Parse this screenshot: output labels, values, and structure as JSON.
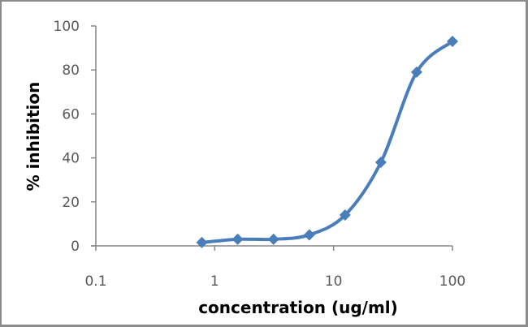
{
  "chart_data": {
    "type": "line",
    "title": "",
    "xlabel": "concentration (ug/ml)",
    "ylabel": "% inhibition",
    "x_scale": "log",
    "xlim": [
      0.1,
      100
    ],
    "ylim": [
      0,
      100
    ],
    "x_ticks": [
      "0.1",
      "1",
      "10",
      "100"
    ],
    "y_ticks": [
      "0",
      "20",
      "40",
      "60",
      "80",
      "100"
    ],
    "grid": false,
    "legend": null,
    "series": [
      {
        "name": "% inhibition",
        "color": "#4a7ebb",
        "marker": "diamond",
        "smooth": true,
        "x": [
          0.78,
          1.56,
          3.125,
          6.25,
          12.5,
          25,
          50,
          100
        ],
        "values": [
          1.5,
          3,
          3,
          5,
          14,
          38,
          79,
          93
        ]
      }
    ]
  }
}
